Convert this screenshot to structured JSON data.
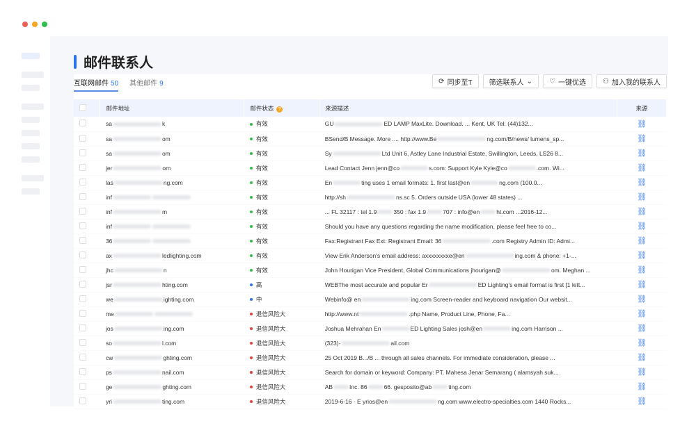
{
  "window": {
    "controls": [
      "#ec5f57",
      "#f5a623",
      "#2fbf4a"
    ]
  },
  "page": {
    "title": "邮件联系人"
  },
  "tabs": [
    {
      "label": "互联网邮件",
      "count": "50",
      "active": true
    },
    {
      "label": "其他邮件",
      "count": "9",
      "active": false
    }
  ],
  "actions": [
    {
      "label": "同步至T",
      "icon": "sync-icon"
    },
    {
      "label": "筛选联系人",
      "icon": "chevron-down-icon"
    },
    {
      "label": "一键优选",
      "icon": "heart-check-icon"
    },
    {
      "label": "加入我的联系人",
      "icon": "user-add-icon"
    }
  ],
  "table": {
    "columns": [
      "邮件地址",
      "邮件状态",
      "来源描述",
      "来源"
    ],
    "status_colors": {
      "有效": "#2fbf4a",
      "高": "#2a73e8",
      "中": "#2a73e8",
      "退信风险大": "#e8403a"
    },
    "rows": [
      {
        "email": [
          "sa",
          "",
          "k"
        ],
        "status": "有效",
        "desc": [
          "GU",
          "",
          "ED LAMP MaxLite. Download. ... Kent, UK Tel: (44)132..."
        ]
      },
      {
        "email": [
          "sa",
          "",
          "om"
        ],
        "status": "有效",
        "desc": [
          "BSend/B Message. More .... http://www.Be",
          "",
          "ng.com/B/news/ lumens_sp..."
        ]
      },
      {
        "email": [
          "sa",
          "",
          "om"
        ],
        "status": "有效",
        "desc": [
          "Sy",
          "",
          "Ltd Unit 6, Astley Lane Industrial Estate, Swillington, Leeds, LS26 8..."
        ]
      },
      {
        "email": [
          "jer",
          "",
          "om"
        ],
        "status": "有效",
        "desc": [
          "Lead Contact Jenn jenn@co",
          "",
          "s.com: Support Kyle Kyle@co",
          "",
          ".com. Wi..."
        ]
      },
      {
        "email": [
          "las",
          "",
          "ng.com"
        ],
        "status": "有效",
        "desc": [
          "En",
          "",
          "ting uses 1 email formats: 1. first last@en",
          "",
          "ng.com (100.0..."
        ]
      },
      {
        "email": [
          "inf",
          "",
          ""
        ],
        "status": "有效",
        "desc": [
          "http://sh",
          "",
          "ns.sc 5. Orders outside USA (lower 48 states) ..."
        ]
      },
      {
        "email": [
          "inf",
          "",
          "m"
        ],
        "status": "有效",
        "desc": [
          "... FL 32117 : tel 1.9",
          "",
          "350 : fax 1.9",
          "",
          "707 : info@en",
          "",
          "ht.com ...2016-12..."
        ]
      },
      {
        "email": [
          "inf",
          "",
          ""
        ],
        "status": "有效",
        "desc": [
          "Should you have any questions regarding the name modification, please feel free to co..."
        ]
      },
      {
        "email": [
          "36",
          "",
          ""
        ],
        "status": "有效",
        "desc": [
          "Fax:Registrant Fax Ext: Registrant Email: 36",
          "",
          ".com Registry Admin ID: Admi..."
        ]
      },
      {
        "email": [
          "ax",
          "",
          "ledlighting.com"
        ],
        "status": "有效",
        "desc": [
          "View Erik Anderson's email address: axxxxxxxxe@en",
          "",
          "ing.com & phone: +1-..."
        ]
      },
      {
        "email": [
          "jhc",
          "",
          "n"
        ],
        "status": "有效",
        "desc": [
          "John Hourigan Vice President, Global Communications jhourigan@",
          "",
          "om. Meghan ..."
        ]
      },
      {
        "email": [
          "jsr",
          "",
          "hting.com"
        ],
        "status": "高",
        "desc": [
          "WEBThe most accurate and popular Er",
          "",
          "ED Lighting's email format is first [1 lett..."
        ]
      },
      {
        "email": [
          "we",
          "",
          "ighting.com"
        ],
        "status": "中",
        "desc": [
          "Webinfo@ en",
          "",
          "ing.com Screen-reader and keyboard navigation Our websit..."
        ]
      },
      {
        "email": [
          "me",
          "",
          ""
        ],
        "status": "退信风险大",
        "desc": [
          "http://www.nt",
          "",
          ".php Name, Product Line, Phone, Fa..."
        ]
      },
      {
        "email": [
          "jos",
          "",
          "ing.com"
        ],
        "status": "退信风险大",
        "desc": [
          "Joshua Mehrahan En",
          "",
          "ED Lighting Sales josh@en",
          "",
          "ing.com Harrison ..."
        ]
      },
      {
        "email": [
          "so",
          "",
          "l.com"
        ],
        "status": "退信风险大",
        "desc": [
          "(323)-",
          "",
          "ail.com"
        ]
      },
      {
        "email": [
          "cw",
          "",
          "ghting.com"
        ],
        "status": "退信风险大",
        "desc": [
          "25 Oct 2019 B.../B ... through all sales channels. For immediate consideration, please ..."
        ]
      },
      {
        "email": [
          "ps",
          "",
          "nail.com"
        ],
        "status": "退信风险大",
        "desc": [
          "Search for domain or keyword: Company: PT. Mahesa Jenar Semarang ( alamsyah suk..."
        ]
      },
      {
        "email": [
          "ge",
          "",
          "ghting.com"
        ],
        "status": "退信风险大",
        "desc": [
          "AB",
          "",
          "Inc. 86",
          "",
          "66. gesposito@ab",
          "",
          "ting.com"
        ]
      },
      {
        "email": [
          "yri",
          "",
          "ting.com"
        ],
        "status": "退信风险大",
        "desc": [
          "2019-6-16 · E yrios@en",
          "",
          "ng.com www.electro-specialties.com 1440 Rocks..."
        ]
      }
    ]
  }
}
